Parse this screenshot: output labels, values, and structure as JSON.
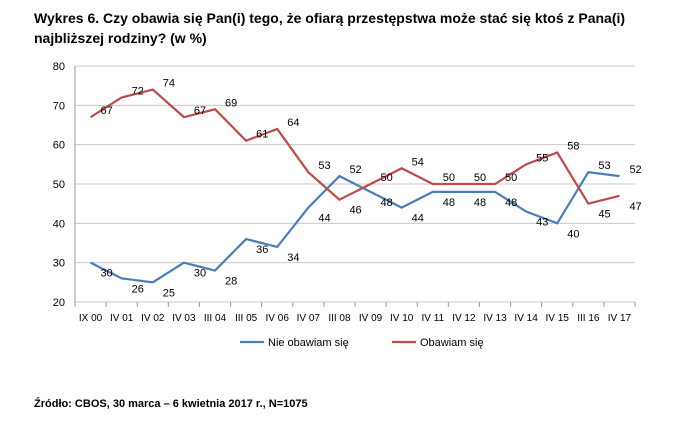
{
  "chart_data": {
    "type": "line",
    "title": "Wykres 6. Czy obawia się Pan(i) tego, że ofiarą przestępstwa może stać się ktoś z Pana(i) najbliższej rodziny? (w %)",
    "categories": [
      "IX 00",
      "IV 01",
      "IV 02",
      "IV 03",
      "III 04",
      "III 05",
      "IV 06",
      "IV 07",
      "III 08",
      "IV 09",
      "IV 10",
      "IV 11",
      "IV 12",
      "IV 13",
      "IV 14",
      "IV 15",
      "III 16",
      "IV 17"
    ],
    "series": [
      {
        "name": "Nie obawiam się",
        "color": "#4a7ebb",
        "values": [
          30,
          26,
          25,
          30,
          28,
          36,
          34,
          44,
          52,
          48,
          44,
          48,
          48,
          48,
          43,
          40,
          53,
          52
        ]
      },
      {
        "name": "Obawiam się",
        "color": "#be4b48",
        "values": [
          67,
          72,
          74,
          67,
          69,
          61,
          64,
          53,
          46,
          50,
          54,
          50,
          50,
          50,
          55,
          58,
          45,
          47
        ]
      }
    ],
    "ylim": [
      20,
      80
    ],
    "yticks": [
      "20",
      "30",
      "40",
      "50",
      "60",
      "70",
      "80"
    ],
    "grid": true,
    "legend": "bottom"
  },
  "source": "Źródło: CBOS, 30 marca – 6 kwietnia 2017 r., N=1075"
}
